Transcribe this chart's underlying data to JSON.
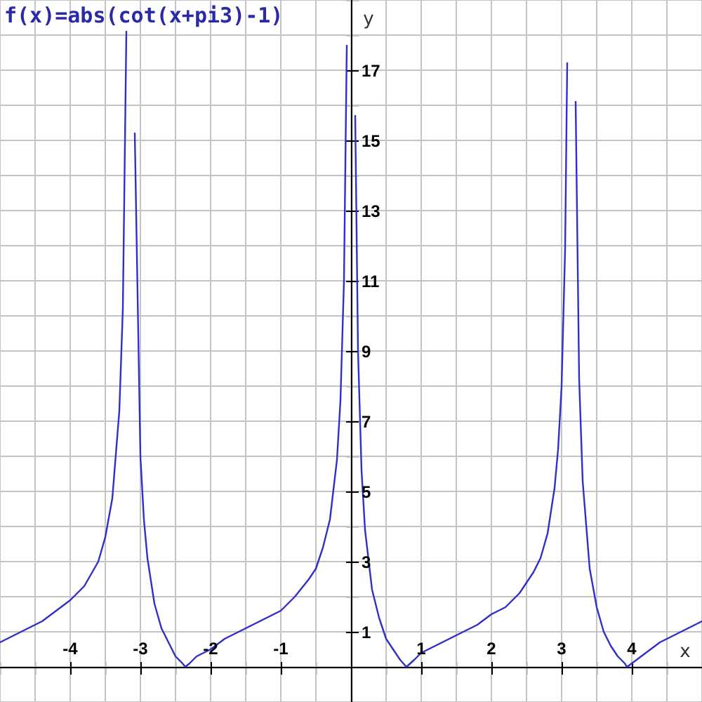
{
  "chart_data": {
    "type": "line",
    "title": "f(x)=abs(cot(x+pi3)-1)",
    "xlabel": "x",
    "ylabel": "y",
    "x": [
      -5,
      -4.8,
      -4.6,
      -4.4,
      -4.2,
      -4,
      -3.8,
      -3.6,
      -3.5,
      -3.4,
      -3.3,
      -3.25,
      -3.2,
      -3.14,
      -3.08,
      -3,
      -2.95,
      -2.9,
      -2.8,
      -2.7,
      -2.6,
      -2.5,
      -2.4,
      -2.36,
      -2.3,
      -2.2,
      -2,
      -1.8,
      -1.6,
      -1.4,
      -1.2,
      -1,
      -0.8,
      -0.6,
      -0.5,
      -0.4,
      -0.3,
      -0.2,
      -0.15,
      -0.1,
      -0.06,
      0,
      0.06,
      0.1,
      0.15,
      0.2,
      0.3,
      0.4,
      0.5,
      0.6,
      0.7,
      0.79,
      0.9,
      1,
      1.2,
      1.4,
      1.6,
      1.8,
      2,
      2.2,
      2.4,
      2.6,
      2.7,
      2.8,
      2.9,
      2.95,
      3,
      3.05,
      3.08,
      3.14,
      3.2,
      3.25,
      3.3,
      3.4,
      3.5,
      3.6,
      3.7,
      3.8,
      3.9,
      3.93,
      4,
      4.2,
      4.4,
      4.6,
      4.8,
      5
    ],
    "series": [
      {
        "color": "#3030c8",
        "values": [
          0.7,
          0.9,
          1.1,
          1.3,
          1.6,
          1.9,
          2.3,
          3,
          3.7,
          4.8,
          7.3,
          10.2,
          18.1,
          null,
          15.2,
          6,
          4.2,
          3.1,
          1.8,
          1.1,
          0.7,
          0.3,
          0.1,
          0,
          0.1,
          0.3,
          0.5,
          0.8,
          1,
          1.2,
          1.4,
          1.6,
          2,
          2.5,
          2.8,
          3.4,
          4.2,
          5.9,
          7.6,
          11,
          17.7,
          null,
          15.7,
          9,
          5.6,
          3.9,
          2.2,
          1.4,
          0.8,
          0.5,
          0.2,
          0,
          0.2,
          0.4,
          0.6,
          0.8,
          1,
          1.2,
          1.5,
          1.7,
          2.1,
          2.7,
          3.1,
          3.8,
          5.1,
          6.2,
          8,
          11.9,
          17.2,
          null,
          16.1,
          8.2,
          5.3,
          2.8,
          1.7,
          1,
          0.6,
          0.3,
          0.1,
          0,
          0.1,
          0.4,
          0.7,
          0.9,
          1.1,
          1.3
        ]
      }
    ],
    "xlim": [
      -5,
      5
    ],
    "ylim": [
      -1,
      19
    ],
    "xticks": [
      {
        "value": -5,
        "label": null
      },
      {
        "value": -4.5,
        "label": null
      },
      -4,
      {
        "value": -3.5,
        "label": null
      },
      -3,
      {
        "value": -2.5,
        "label": null
      },
      -2,
      {
        "value": -1.5,
        "label": null
      },
      -1,
      {
        "value": -0.5,
        "label": null
      },
      {
        "value": 0,
        "label": null
      },
      {
        "value": 0.5,
        "label": null
      },
      1,
      {
        "value": 1.5,
        "label": null
      },
      2,
      {
        "value": 2.5,
        "label": null
      },
      3,
      {
        "value": 3.5,
        "label": null
      },
      4,
      {
        "value": 4.5,
        "label": null
      },
      {
        "value": 5,
        "label": null
      }
    ],
    "yticks": [
      {
        "value": -1,
        "label": null
      },
      {
        "value": 0,
        "label": null
      },
      1,
      {
        "value": 2,
        "label": null
      },
      3,
      {
        "value": 4,
        "label": null
      },
      5,
      {
        "value": 6,
        "label": null
      },
      7,
      {
        "value": 8,
        "label": null
      },
      9,
      {
        "value": 10,
        "label": null
      },
      11,
      {
        "value": 12,
        "label": null
      },
      13,
      {
        "value": 14,
        "label": null
      },
      15,
      {
        "value": 16,
        "label": null
      },
      17,
      {
        "value": 18,
        "label": null
      },
      {
        "value": 19,
        "label": null
      }
    ],
    "grid": true
  }
}
